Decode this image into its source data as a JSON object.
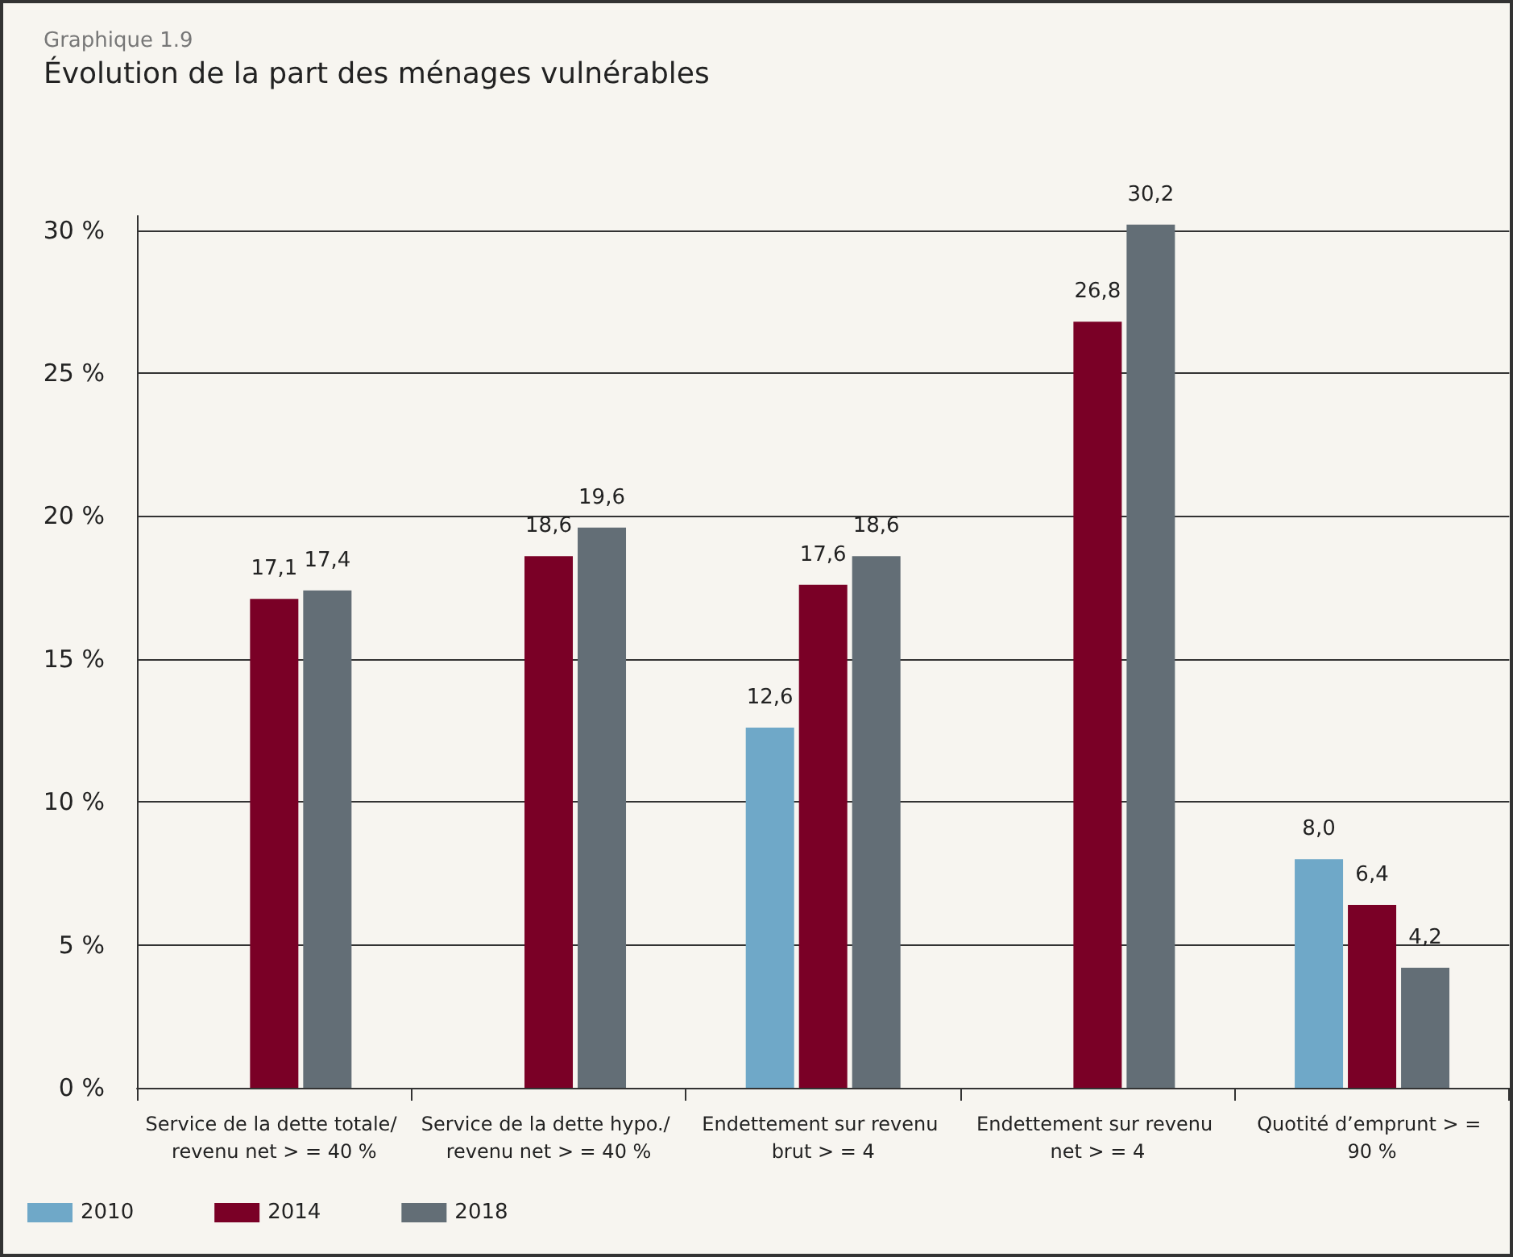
{
  "chart_data": {
    "type": "bar",
    "subtitle": "Graphique 1.9",
    "title": "Évolution de la part des ménages vulnérables",
    "categories": [
      "Service de la dette totale/ revenu net > = 40 %",
      "Service de la dette hypo./ revenu net > = 40 %",
      "Endettement sur revenu brut > = 4",
      "Endettement sur revenu net > = 4",
      "Quotité d’emprunt > = 90 %"
    ],
    "series": [
      {
        "name": "2010",
        "color": "#6fa8c8",
        "values": [
          null,
          null,
          12.6,
          null,
          8.0
        ],
        "value_labels": [
          null,
          null,
          "12,6",
          null,
          "8,0"
        ]
      },
      {
        "name": "2014",
        "color": "#7a0026",
        "values": [
          17.1,
          18.6,
          17.6,
          26.8,
          6.4
        ],
        "value_labels": [
          "17,1",
          "18,6",
          "17,6",
          "26,8",
          "6,4"
        ]
      },
      {
        "name": "2018",
        "color": "#636e76",
        "values": [
          17.4,
          19.6,
          18.6,
          30.2,
          4.2
        ],
        "value_labels": [
          "17,4",
          "19,6",
          "18,6",
          "30,2",
          "4,2"
        ]
      }
    ],
    "ylim": [
      0,
      30.5
    ],
    "yticks": [
      {
        "value": 0,
        "label": "0 %"
      },
      {
        "value": 5,
        "label": "5 %"
      },
      {
        "value": 10,
        "label": "10 %"
      },
      {
        "value": 15,
        "label": "15 %"
      },
      {
        "value": 20,
        "label": "20 %"
      },
      {
        "value": 25,
        "label": "25 %"
      },
      {
        "value": 30,
        "label": "30 %"
      }
    ],
    "grid": "y",
    "legend": "bottom left"
  }
}
